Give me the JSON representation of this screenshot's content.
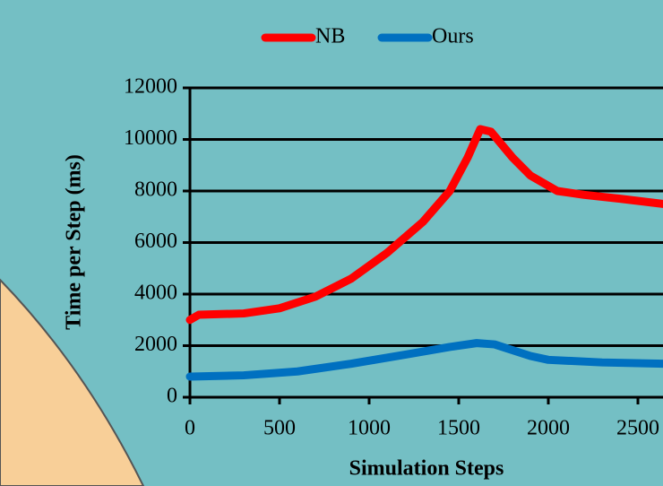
{
  "chart_data": {
    "type": "line",
    "x_label": "Simulation Steps",
    "y_label": "Time per Step (ms)",
    "xlim": [
      0,
      2640
    ],
    "xticks": [
      0,
      500,
      1000,
      1500,
      2000,
      2500
    ],
    "ylim": [
      0,
      12000
    ],
    "yticks": [
      0,
      2000,
      4000,
      6000,
      8000,
      10000,
      12000
    ],
    "grid": true,
    "legend": "top",
    "series": [
      {
        "name": "NB",
        "color": "#ff0000",
        "x": [
          0,
          50,
          300,
          500,
          700,
          900,
          1100,
          1300,
          1450,
          1550,
          1620,
          1680,
          1800,
          1900,
          2050,
          2200,
          2400,
          2640
        ],
        "values": [
          3000,
          3200,
          3250,
          3450,
          3900,
          4600,
          5600,
          6800,
          8000,
          9300,
          10400,
          10300,
          9300,
          8600,
          8000,
          7850,
          7700,
          7500
        ]
      },
      {
        "name": "Ours",
        "color": "#0070c0",
        "x": [
          0,
          300,
          600,
          900,
          1200,
          1450,
          1600,
          1700,
          1900,
          2000,
          2300,
          2640
        ],
        "values": [
          800,
          850,
          1000,
          1300,
          1650,
          1950,
          2100,
          2050,
          1600,
          1450,
          1350,
          1300
        ]
      }
    ]
  }
}
